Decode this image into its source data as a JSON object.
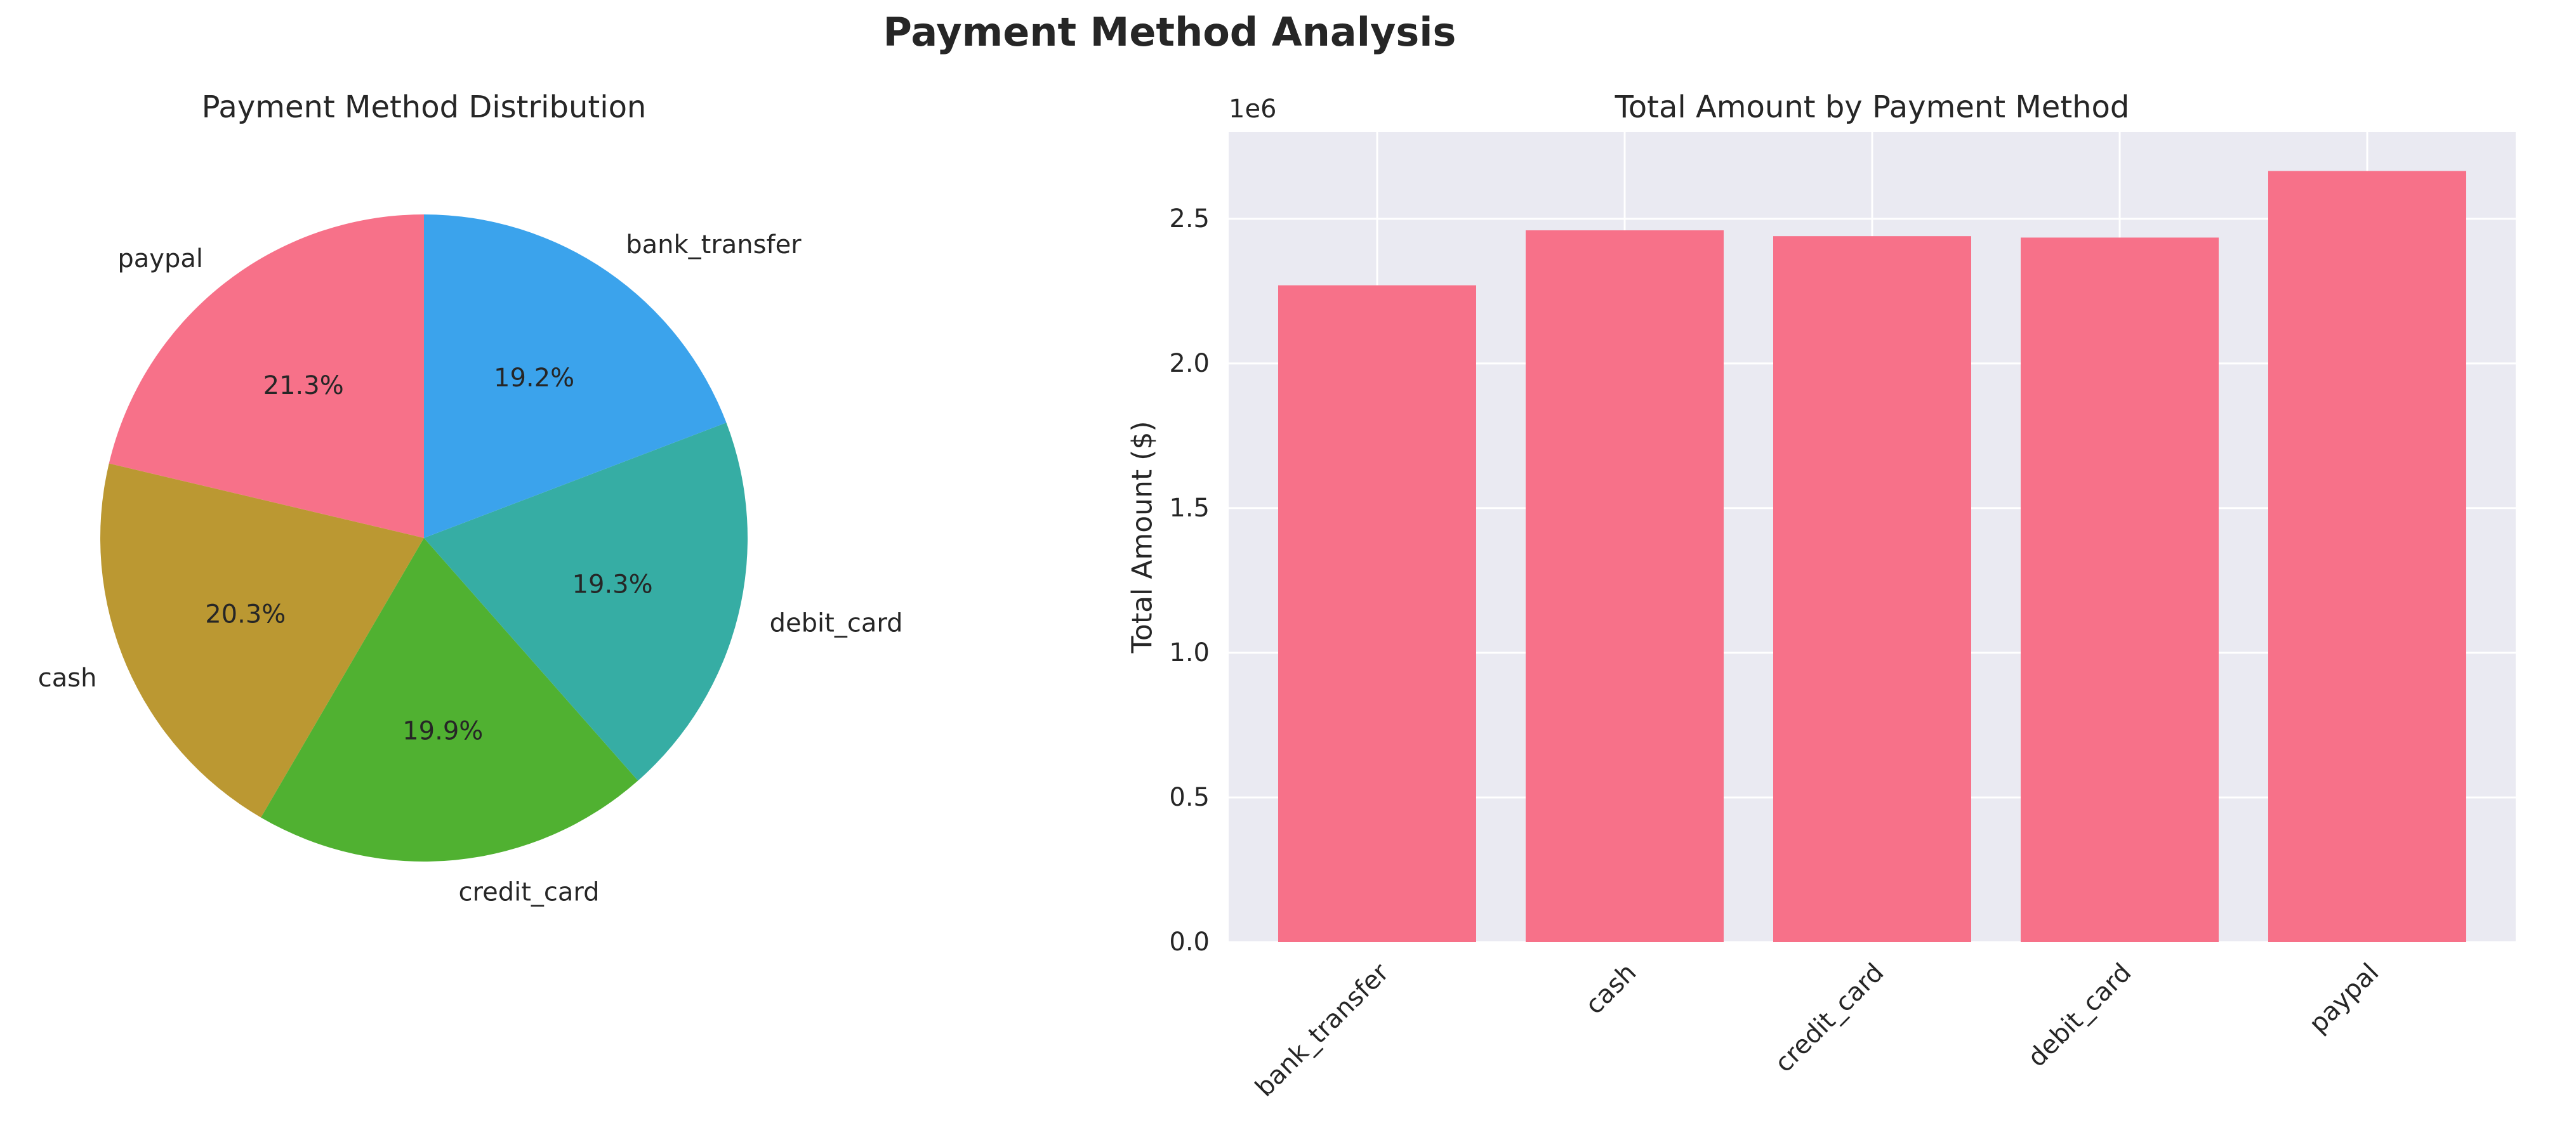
{
  "figure": {
    "title": "Payment Method Analysis"
  },
  "chart_data": [
    {
      "type": "pie",
      "title": "Payment Method Distribution",
      "start_angle_deg": 90,
      "direction": "counterclockwise",
      "slices": [
        {
          "label": "paypal",
          "value": 21.3,
          "pct_label": "21.3%",
          "color": "#f77189"
        },
        {
          "label": "cash",
          "value": 20.3,
          "pct_label": "20.3%",
          "color": "#bb9832"
        },
        {
          "label": "credit_card",
          "value": 19.9,
          "pct_label": "19.9%",
          "color": "#50b131"
        },
        {
          "label": "debit_card",
          "value": 19.3,
          "pct_label": "19.3%",
          "color": "#36ada4"
        },
        {
          "label": "bank_transfer",
          "value": 19.2,
          "pct_label": "19.2%",
          "color": "#3ba3ec"
        }
      ]
    },
    {
      "type": "bar",
      "title": "Total Amount by Payment Method",
      "xlabel": "",
      "ylabel": "Total Amount ($)",
      "scale_label": "1e6",
      "categories": [
        "bank_transfer",
        "cash",
        "credit_card",
        "debit_card",
        "paypal"
      ],
      "values": [
        2.27,
        2.46,
        2.44,
        2.435,
        2.665
      ],
      "ylim": [
        0,
        2.8
      ],
      "yticks": [
        {
          "value": 0.0,
          "label": "0.0"
        },
        {
          "value": 0.5,
          "label": "0.5"
        },
        {
          "value": 1.0,
          "label": "1.0"
        },
        {
          "value": 1.5,
          "label": "1.5"
        },
        {
          "value": 2.0,
          "label": "2.0"
        },
        {
          "value": 2.5,
          "label": "2.5"
        }
      ],
      "bar_color": "#f77189",
      "background": "#eaeaf2",
      "grid": true
    }
  ]
}
